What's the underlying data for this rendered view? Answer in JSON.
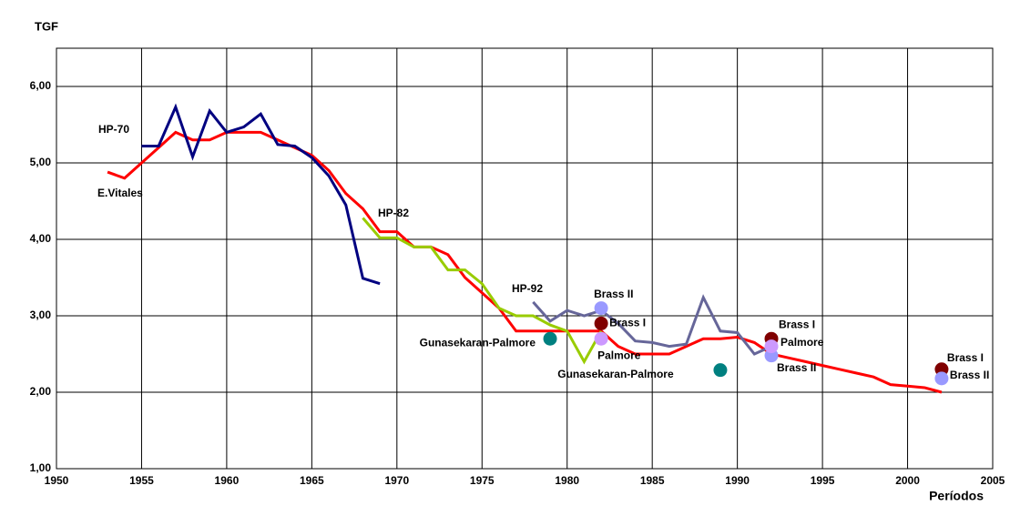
{
  "chart_data": {
    "type": "line",
    "y_label": "TGF",
    "x_label": "Períodos",
    "xlim": [
      1950,
      2005
    ],
    "xticks": [
      1950,
      1955,
      1960,
      1965,
      1970,
      1975,
      1980,
      1985,
      1990,
      1995,
      2000,
      2005
    ],
    "ylim": [
      1,
      6.5
    ],
    "yticks": [
      {
        "value": 1,
        "label": "1,00"
      },
      {
        "value": 2,
        "label": "2,00"
      },
      {
        "value": 3,
        "label": "3,00"
      },
      {
        "value": 4,
        "label": "4,00"
      },
      {
        "value": 5,
        "label": "5,00"
      },
      {
        "value": 6,
        "label": "6,00"
      }
    ],
    "grid": true,
    "series": [
      {
        "name": "E.Vitales",
        "color": "#ff0000",
        "mode": "line",
        "x": [
          1953,
          1954,
          1955,
          1956,
          1957,
          1958,
          1959,
          1960,
          1961,
          1962,
          1963,
          1964,
          1965,
          1966,
          1967,
          1968,
          1969,
          1970,
          1971,
          1972,
          1973,
          1974,
          1975,
          1976,
          1977,
          1978,
          1979,
          1980,
          1981,
          1982,
          1983,
          1984,
          1985,
          1986,
          1987,
          1988,
          1989,
          1990,
          1991,
          1992,
          1993,
          1994,
          1995,
          1996,
          1997,
          1998,
          1999,
          2000,
          2001,
          2002
        ],
        "values": [
          4.88,
          4.8,
          5.0,
          5.2,
          5.4,
          5.3,
          5.3,
          5.4,
          5.4,
          5.4,
          5.3,
          5.2,
          5.1,
          4.9,
          4.6,
          4.4,
          4.1,
          4.1,
          3.9,
          3.9,
          3.8,
          3.5,
          3.3,
          3.1,
          2.8,
          2.8,
          2.8,
          2.8,
          2.8,
          2.8,
          2.6,
          2.5,
          2.5,
          2.5,
          2.6,
          2.7,
          2.7,
          2.72,
          2.65,
          2.5,
          2.45,
          2.4,
          2.35,
          2.3,
          2.25,
          2.2,
          2.1,
          2.08,
          2.06,
          2.0
        ]
      },
      {
        "name": "HP-70",
        "color": "#000080",
        "mode": "line",
        "x": [
          1955,
          1956,
          1957,
          1958,
          1959,
          1960,
          1961,
          1962,
          1963,
          1964,
          1965,
          1966,
          1967,
          1968,
          1969
        ],
        "values": [
          5.22,
          5.22,
          5.73,
          5.08,
          5.68,
          5.4,
          5.47,
          5.64,
          5.24,
          5.22,
          5.07,
          4.83,
          4.45,
          3.49,
          3.42
        ]
      },
      {
        "name": "HP-82",
        "color": "#99cc00",
        "mode": "line",
        "x": [
          1968,
          1969,
          1970,
          1971,
          1972,
          1973,
          1974,
          1975,
          1976,
          1977,
          1978,
          1979,
          1980,
          1981,
          1982
        ],
        "values": [
          4.28,
          4.02,
          4.02,
          3.9,
          3.9,
          3.6,
          3.6,
          3.42,
          3.1,
          3.0,
          3.0,
          2.88,
          2.8,
          2.4,
          2.8
        ]
      },
      {
        "name": "HP-92",
        "color": "#666699",
        "mode": "line",
        "x": [
          1978,
          1979,
          1980,
          1981,
          1982,
          1983,
          1984,
          1985,
          1986,
          1987,
          1988,
          1989,
          1990,
          1991,
          1992
        ],
        "values": [
          3.18,
          2.93,
          3.07,
          3.0,
          3.07,
          2.9,
          2.67,
          2.65,
          2.6,
          2.63,
          3.24,
          2.8,
          2.78,
          2.5,
          2.6
        ]
      },
      {
        "name": "Gunasekaran-Palmore",
        "color": "#008080",
        "mode": "points",
        "x": [
          1979,
          1989
        ],
        "values": [
          2.7,
          2.29
        ]
      },
      {
        "name": "Brass I",
        "color": "#800000",
        "mode": "points",
        "x": [
          1982,
          1992,
          2002
        ],
        "values": [
          2.9,
          2.7,
          2.3
        ]
      },
      {
        "name": "Brass II",
        "color": "#9999ff",
        "mode": "points",
        "x": [
          1982,
          1992,
          2002
        ],
        "values": [
          3.1,
          2.48,
          2.18
        ]
      },
      {
        "name": "Palmore",
        "color": "#cc99ff",
        "mode": "points",
        "x": [
          1982,
          1992
        ],
        "values": [
          2.7,
          2.6
        ]
      }
    ]
  }
}
